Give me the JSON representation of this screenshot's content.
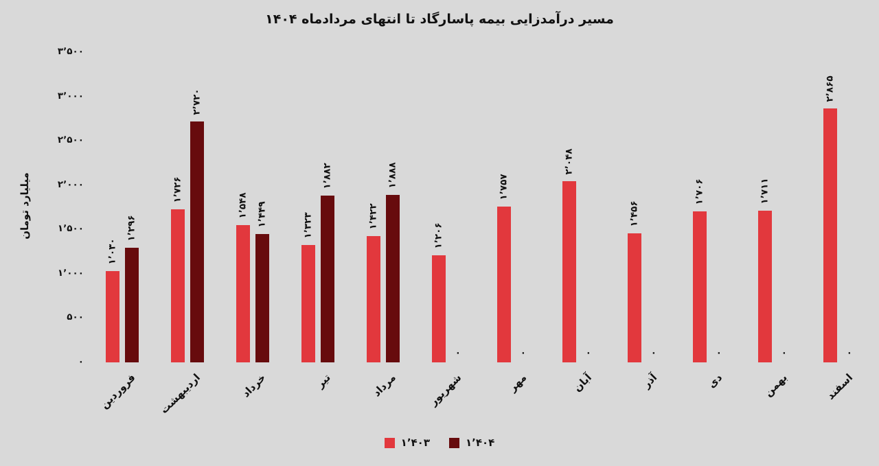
{
  "colors": {
    "background": "#d9d9d9",
    "text": "#111111",
    "series_1403": "#e2383d",
    "series_1404": "#670b0d"
  },
  "chart_data": {
    "type": "bar",
    "title": "مسیر درآمدزایی بیمه پاسارگاد تا انتهای مردادماه ۱۴۰۴",
    "xlabel": "",
    "ylabel": "میلیارد تومان",
    "ylim": [
      0,
      3500
    ],
    "grid": false,
    "legend_position": "bottom",
    "categories": [
      "فروردین",
      "اردیبهشت",
      "خرداد",
      "تیر",
      "مرداد",
      "شهریور",
      "مهر",
      "آبان",
      "آذر",
      "دی",
      "بهمن",
      "اسفند"
    ],
    "yticks": {
      "values": [
        0,
        500,
        1000,
        1500,
        2000,
        2500,
        3000,
        3500
      ],
      "labels": [
        "۰",
        "۵۰۰",
        "۱٬۰۰۰",
        "۱٬۵۰۰",
        "۲٬۰۰۰",
        "۲٬۵۰۰",
        "۳٬۰۰۰",
        "۳٬۵۰۰"
      ]
    },
    "series": [
      {
        "key": "1403",
        "name": "۱٬۴۰۳",
        "color": "#e2383d",
        "values": [
          1030,
          1726,
          1548,
          1323,
          1422,
          1206,
          1757,
          2048,
          1456,
          1706,
          1711,
          2865
        ],
        "labels": [
          "۱٬۰۳۰",
          "۱٬۷۲۶",
          "۱٬۵۴۸",
          "۱٬۳۲۳",
          "۱٬۴۲۲",
          "۱٬۲۰۶",
          "۱٬۷۵۷",
          "۲٬۰۴۸",
          "۱٬۴۵۶",
          "۱٬۷۰۶",
          "۱٬۷۱۱",
          "۲٬۸۶۵"
        ]
      },
      {
        "key": "1404",
        "name": "۱٬۴۰۴",
        "color": "#670b0d",
        "values": [
          1296,
          2720,
          1449,
          1882,
          1888,
          0,
          0,
          0,
          0,
          0,
          0,
          0
        ],
        "labels": [
          "۱٬۲۹۶",
          "۲٬۷۲۰",
          "۱٬۴۴۹",
          "۱٬۸۸۲",
          "۱٬۸۸۸",
          "۰",
          "۰",
          "۰",
          "۰",
          "۰",
          "۰",
          "۰"
        ]
      }
    ]
  }
}
